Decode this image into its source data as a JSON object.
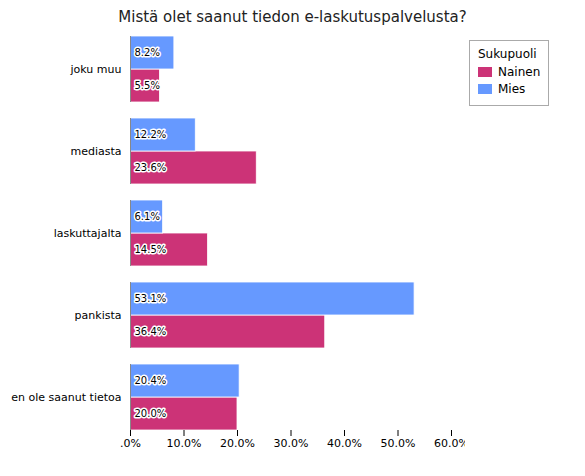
{
  "chart_data": {
    "type": "bar",
    "title": "Mistä olet saanut tiedon e-laskutuspalvelusta?",
    "orientation": "horizontal",
    "categories": [
      "en ole saanut tietoa",
      "pankista",
      "laskuttajalta",
      "mediasta",
      "joku muu"
    ],
    "series": [
      {
        "name": "Nainen",
        "color": "#CC3377",
        "values": [
          20.0,
          36.4,
          14.5,
          23.6,
          5.5
        ],
        "value_labels": [
          "20.0%",
          "36.4%",
          "14.5%",
          "23.6%",
          "5.5%"
        ]
      },
      {
        "name": "Mies",
        "color": "#6699FF",
        "values": [
          20.4,
          53.1,
          6.1,
          12.2,
          8.2
        ],
        "value_labels": [
          "20.4%",
          "53.1%",
          "6.1%",
          "12.2%",
          "8.2%"
        ]
      }
    ],
    "xlim": [
      0,
      60
    ],
    "xticks": [
      {
        "value": 0,
        "label": ".0%"
      },
      {
        "value": 10,
        "label": "10.0%"
      },
      {
        "value": 20,
        "label": "20.0%"
      },
      {
        "value": 30,
        "label": "30.0%"
      },
      {
        "value": 40,
        "label": "40.0%"
      },
      {
        "value": 50,
        "label": "50.0%"
      },
      {
        "value": 60,
        "label": "60.0%"
      }
    ],
    "grid": false,
    "data_labels": true,
    "legend": "right",
    "legend_title": "Sukupuoli"
  }
}
